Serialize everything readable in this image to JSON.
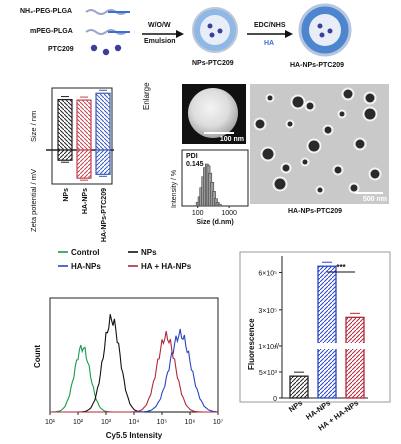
{
  "scheme": {
    "reagent_1": "NH₂-PEG-PLGA",
    "reagent_2": "mPEG-PLGA",
    "reagent_3": "PTC209",
    "step1_top": "W/O/W",
    "step1_bottom": "Emulsion",
    "np_label": "NPs-PTC209",
    "step2_top": "EDC/NHS",
    "step2_bottom": "HA",
    "hanp_label": "HA-NPs-PTC209"
  },
  "zeta_size_chart": {
    "ylabel_left": "Zeta potential / mV",
    "ylabel_right": "Size / nm",
    "categories": [
      "NPs",
      "HA-NPs",
      "HA-NPs-PTC209"
    ],
    "size_nm": [
      200,
      198,
      225
    ],
    "zeta_mv": [
      -8,
      -22,
      -19
    ],
    "colors": [
      "#222222",
      "#c0444f",
      "#3a5bb8"
    ]
  },
  "tem": {
    "enlarge_label": "Enlarge",
    "enlarge_scale": "100 nm",
    "main_scale": "500 nm",
    "caption": "HA-NPs-PTC209"
  },
  "dls_chart": {
    "type": "bar",
    "ylabel": "Intensity / %",
    "xlabel": "Size (d.nm)",
    "pdi_label": "PDI",
    "pdi_value": "0.145",
    "x_ticks": [
      "100",
      "1000"
    ],
    "x": [
      100,
      115,
      130,
      150,
      170,
      195,
      220,
      250,
      290,
      330,
      380,
      430,
      500
    ],
    "values": [
      2,
      5,
      10,
      16,
      21,
      23,
      22,
      18,
      13,
      8,
      4,
      2,
      1
    ]
  },
  "flow_chart": {
    "type": "line",
    "xlabel": "Cy5.5 Intensity",
    "ylabel": "Count",
    "x_ticks": [
      "10¹",
      "10²",
      "10³",
      "10⁴",
      "10⁵",
      "10⁶",
      "10⁷"
    ],
    "series": [
      {
        "name": "Control",
        "color": "#1a9a4a",
        "peak": 2.15,
        "width": 0.28,
        "height": 0.6
      },
      {
        "name": "NPs",
        "color": "#111111",
        "peak": 3.2,
        "width": 0.3,
        "height": 0.86
      },
      {
        "name": "HA-NPs",
        "color": "#2a45c4",
        "peak": 5.65,
        "width": 0.38,
        "height": 0.72
      },
      {
        "name": "HA + HA-NPs",
        "color": "#b0283a",
        "peak": 5.15,
        "width": 0.33,
        "height": 0.7
      }
    ]
  },
  "fluor_chart": {
    "type": "bar",
    "ylabel": "Fluorescence",
    "y_ticks_upper": [
      "6×10⁵",
      "3×10⁵",
      "1×10⁴"
    ],
    "y_ticks_lower": [
      "5×10³",
      "0"
    ],
    "categories": [
      "NPs",
      "HA-NPs",
      "HA + HA-NPs"
    ],
    "values": [
      4200,
      650000,
      240000
    ],
    "colors": [
      "#222222",
      "#2a45c4",
      "#b0283a"
    ],
    "significance": "***"
  }
}
